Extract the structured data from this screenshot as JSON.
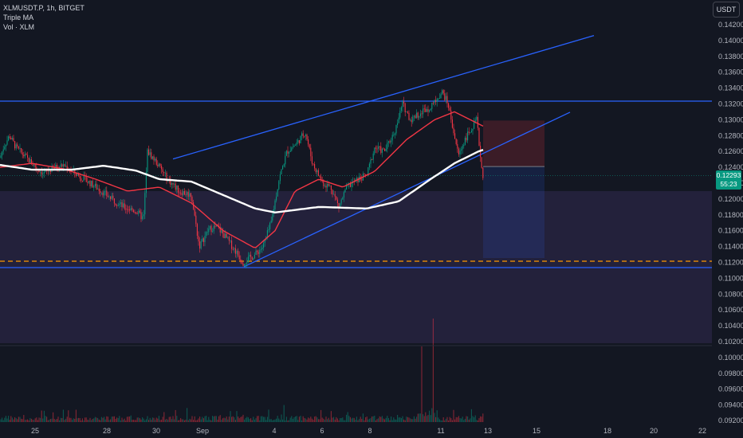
{
  "header": {
    "symbol_line": "XLMUSDT.P, 1h, BITGET",
    "indicator_1": "Triple MA",
    "indicator_2": "Vol · XLM",
    "currency_button": "USDT"
  },
  "last_price": {
    "value": "0.12293",
    "countdown": "55:23"
  },
  "colors": {
    "background": "#131722",
    "up_candle": "#089981",
    "down_candle": "#f23645",
    "trendline": "#2962ff",
    "ma_red": "#f23645",
    "ma_white": "#ffffff",
    "dashed_level": "#ff9800",
    "zone": "#7e57c2"
  },
  "chart_data": {
    "type": "candlestick",
    "symbol": "XLMUSDT.P",
    "timeframe": "1h",
    "exchange": "BITGET",
    "y_axis": {
      "ticks": [
        "0.14200",
        "0.14000",
        "0.13800",
        "0.13600",
        "0.13400",
        "0.13200",
        "0.13000",
        "0.12800",
        "0.12600",
        "0.12400",
        "0.12200",
        "0.12000",
        "0.11800",
        "0.11600",
        "0.11400",
        "0.11200",
        "0.11000",
        "0.10800",
        "0.10600",
        "0.10400",
        "0.10200"
      ],
      "ylim": [
        0.1015,
        0.1432
      ]
    },
    "volume_axis": {
      "ticks": [
        "0.10000",
        "0.09800",
        "0.09600",
        "0.09400",
        "0.09200"
      ]
    },
    "x_axis": {
      "ticks": [
        "25",
        "28",
        "30",
        "Sep",
        "4",
        "6",
        "8",
        "11",
        "13",
        "15",
        "18",
        "20",
        "22"
      ]
    },
    "price_path": [
      [
        0,
        0.1252
      ],
      [
        5,
        0.1267
      ],
      [
        12,
        0.128
      ],
      [
        20,
        0.1265
      ],
      [
        30,
        0.1255
      ],
      [
        45,
        0.124
      ],
      [
        55,
        0.1232
      ],
      [
        65,
        0.1238
      ],
      [
        80,
        0.1243
      ],
      [
        95,
        0.1232
      ],
      [
        110,
        0.1222
      ],
      [
        125,
        0.1212
      ],
      [
        140,
        0.12
      ],
      [
        155,
        0.119
      ],
      [
        170,
        0.1185
      ],
      [
        180,
        0.1175
      ],
      [
        185,
        0.126
      ],
      [
        195,
        0.1248
      ],
      [
        210,
        0.1225
      ],
      [
        225,
        0.121
      ],
      [
        240,
        0.1205
      ],
      [
        250,
        0.114
      ],
      [
        262,
        0.1162
      ],
      [
        272,
        0.1165
      ],
      [
        283,
        0.1152
      ],
      [
        295,
        0.1135
      ],
      [
        305,
        0.112
      ],
      [
        320,
        0.113
      ],
      [
        330,
        0.114
      ],
      [
        340,
        0.117
      ],
      [
        350,
        0.1225
      ],
      [
        360,
        0.126
      ],
      [
        372,
        0.127
      ],
      [
        383,
        0.1285
      ],
      [
        392,
        0.1245
      ],
      [
        405,
        0.122
      ],
      [
        415,
        0.1215
      ],
      [
        425,
        0.119
      ],
      [
        435,
        0.1215
      ],
      [
        450,
        0.1225
      ],
      [
        460,
        0.123
      ],
      [
        470,
        0.1265
      ],
      [
        482,
        0.126
      ],
      [
        495,
        0.1285
      ],
      [
        505,
        0.132
      ],
      [
        515,
        0.13
      ],
      [
        528,
        0.131
      ],
      [
        538,
        0.1315
      ],
      [
        545,
        0.1325
      ],
      [
        555,
        0.1335
      ],
      [
        562,
        0.132
      ],
      [
        568,
        0.129
      ],
      [
        575,
        0.1255
      ],
      [
        583,
        0.1275
      ],
      [
        592,
        0.129
      ],
      [
        598,
        0.13
      ],
      [
        604,
        0.124
      ],
      [
        606,
        0.12293
      ]
    ],
    "series": [
      {
        "name": "Triple MA (red)",
        "color": "#f23645"
      },
      {
        "name": "Triple MA (white)",
        "color": "#ffffff"
      }
    ],
    "ma_red_path": [
      [
        0,
        0.124
      ],
      [
        40,
        0.1245
      ],
      [
        80,
        0.1238
      ],
      [
        120,
        0.1225
      ],
      [
        160,
        0.121
      ],
      [
        200,
        0.1215
      ],
      [
        240,
        0.1195
      ],
      [
        280,
        0.116
      ],
      [
        320,
        0.1138
      ],
      [
        345,
        0.116
      ],
      [
        370,
        0.121
      ],
      [
        400,
        0.1225
      ],
      [
        430,
        0.1215
      ],
      [
        470,
        0.1235
      ],
      [
        510,
        0.1275
      ],
      [
        545,
        0.13
      ],
      [
        570,
        0.131
      ],
      [
        590,
        0.13
      ],
      [
        606,
        0.1292
      ]
    ],
    "ma_white_path": [
      [
        0,
        0.1243
      ],
      [
        40,
        0.1237
      ],
      [
        90,
        0.1237
      ],
      [
        130,
        0.1242
      ],
      [
        170,
        0.1236
      ],
      [
        200,
        0.1225
      ],
      [
        240,
        0.1222
      ],
      [
        280,
        0.1205
      ],
      [
        320,
        0.1188
      ],
      [
        345,
        0.1183
      ],
      [
        400,
        0.119
      ],
      [
        460,
        0.1188
      ],
      [
        500,
        0.1197
      ],
      [
        540,
        0.1225
      ],
      [
        570,
        0.1245
      ],
      [
        600,
        0.126
      ],
      [
        606,
        0.1262
      ]
    ],
    "levels": [
      {
        "kind": "horizontal",
        "price": 0.13235,
        "style": "solid"
      },
      {
        "kind": "horizontal",
        "price": 0.11135,
        "style": "solid"
      },
      {
        "kind": "horizontal",
        "price": 0.11215,
        "style": "dashed"
      }
    ],
    "channel": {
      "upper": [
        [
          217,
          0.12505
        ],
        [
          745,
          0.14063
        ]
      ],
      "lower": [
        [
          306,
          0.11145
        ],
        [
          715,
          0.13095
        ]
      ]
    },
    "zone": {
      "top": 0.121,
      "bottom": 0.1018
    },
    "position_box": {
      "entry": 0.1241,
      "stop": 0.1299,
      "target": 0.11255
    }
  }
}
